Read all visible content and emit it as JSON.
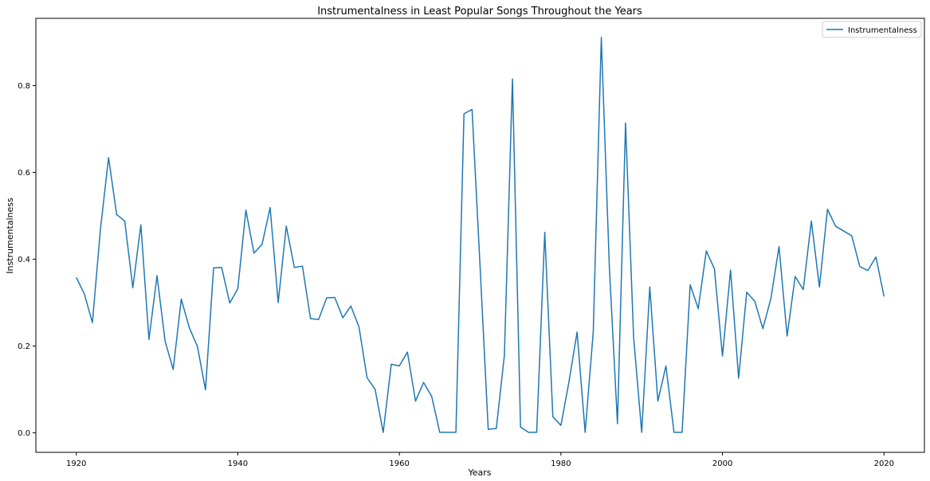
{
  "chart_data": {
    "type": "line",
    "title": "Instrumentalness in Least Popular Songs Throughout the Years",
    "xlabel": "Years",
    "ylabel": "Instrumentalness",
    "xlim": [
      1915,
      2025
    ],
    "ylim": [
      -0.045,
      0.955
    ],
    "xticks": [
      1920,
      1940,
      1960,
      1980,
      2000,
      2020
    ],
    "yticks": [
      0.0,
      0.2,
      0.4,
      0.6,
      0.8
    ],
    "ytick_labels": [
      "0.0",
      "0.2",
      "0.4",
      "0.6",
      "0.8"
    ],
    "grid": false,
    "legend": {
      "position": "top-right"
    },
    "series": [
      {
        "name": "Instrumentalness",
        "color": "#1f77b4",
        "x": [
          1920,
          1921,
          1922,
          1923,
          1924,
          1925,
          1926,
          1927,
          1928,
          1929,
          1930,
          1931,
          1932,
          1933,
          1934,
          1935,
          1936,
          1937,
          1938,
          1939,
          1940,
          1941,
          1942,
          1943,
          1944,
          1945,
          1946,
          1947,
          1948,
          1949,
          1950,
          1951,
          1952,
          1953,
          1954,
          1955,
          1956,
          1957,
          1958,
          1959,
          1960,
          1961,
          1962,
          1963,
          1964,
          1965,
          1966,
          1967,
          1968,
          1969,
          1970,
          1971,
          1972,
          1973,
          1974,
          1975,
          1976,
          1977,
          1978,
          1979,
          1980,
          1981,
          1982,
          1983,
          1984,
          1985,
          1986,
          1987,
          1988,
          1989,
          1990,
          1991,
          1992,
          1993,
          1994,
          1995,
          1996,
          1997,
          1998,
          1999,
          2000,
          2001,
          2002,
          2003,
          2004,
          2005,
          2006,
          2007,
          2008,
          2009,
          2010,
          2011,
          2012,
          2013,
          2014,
          2015,
          2016,
          2017,
          2018,
          2019,
          2020
        ],
        "values": [
          0.358,
          0.32,
          0.254,
          0.47,
          0.634,
          0.503,
          0.488,
          0.334,
          0.479,
          0.215,
          0.362,
          0.211,
          0.146,
          0.308,
          0.242,
          0.199,
          0.099,
          0.38,
          0.381,
          0.299,
          0.332,
          0.513,
          0.414,
          0.434,
          0.519,
          0.3,
          0.476,
          0.381,
          0.384,
          0.263,
          0.261,
          0.311,
          0.312,
          0.265,
          0.292,
          0.244,
          0.127,
          0.1,
          0.001,
          0.158,
          0.154,
          0.186,
          0.073,
          0.116,
          0.084,
          0.001,
          0.001,
          0.001,
          0.735,
          0.745,
          0.38,
          0.008,
          0.01,
          0.178,
          0.815,
          0.013,
          0.001,
          0.001,
          0.462,
          0.037,
          0.017,
          0.118,
          0.232,
          0.001,
          0.232,
          0.911,
          0.38,
          0.021,
          0.714,
          0.22,
          0.001,
          0.336,
          0.073,
          0.154,
          0.001,
          0.001,
          0.341,
          0.286,
          0.419,
          0.378,
          0.177,
          0.375,
          0.126,
          0.324,
          0.303,
          0.24,
          0.31,
          0.429,
          0.223,
          0.36,
          0.33,
          0.488,
          0.336,
          0.515,
          0.476,
          0.465,
          0.454,
          0.383,
          0.374,
          0.405,
          0.314
        ]
      }
    ]
  }
}
